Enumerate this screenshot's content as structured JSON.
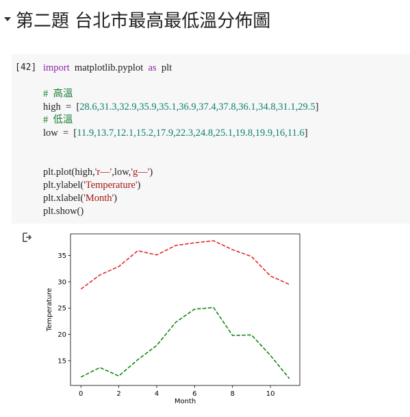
{
  "section": {
    "title": "第二題 台北市最高最低溫分佈圖"
  },
  "cell": {
    "prompt": "[42]",
    "lines": [
      [
        {
          "t": "import",
          "c": "kw"
        },
        {
          "t": "  matplotlib.pyplot  ",
          "c": ""
        },
        {
          "t": "as",
          "c": "kw"
        },
        {
          "t": "  plt",
          "c": ""
        }
      ],
      [],
      [
        {
          "t": "#  高溫",
          "c": "cm"
        }
      ],
      [
        {
          "t": "high  =  [",
          "c": ""
        },
        {
          "t": "28.6,31.3,32.9,35.9,35.1,36.9,37.4,37.8,36.1,34.8,31.1,29.5",
          "c": "num"
        },
        {
          "t": "]",
          "c": ""
        }
      ],
      [
        {
          "t": "#  低溫",
          "c": "cm"
        }
      ],
      [
        {
          "t": "low  =  [",
          "c": ""
        },
        {
          "t": "11.9,13.7,12.1,15.2,17.9,22.3,24.8,25.1,19.8,19.9,16,11.6",
          "c": "num"
        },
        {
          "t": "]",
          "c": ""
        }
      ],
      [],
      [],
      [
        {
          "t": "plt.plot(high,",
          "c": ""
        },
        {
          "t": "'r—'",
          "c": "str"
        },
        {
          "t": ",low,",
          "c": ""
        },
        {
          "t": "'g—'",
          "c": "str"
        },
        {
          "t": ")",
          "c": ""
        }
      ],
      [
        {
          "t": "plt.ylabel(",
          "c": ""
        },
        {
          "t": "'Temperature'",
          "c": "str"
        },
        {
          "t": ")",
          "c": ""
        }
      ],
      [
        {
          "t": "plt.xlabel(",
          "c": ""
        },
        {
          "t": "'Month'",
          "c": "str"
        },
        {
          "t": ")",
          "c": ""
        }
      ],
      [
        {
          "t": "plt.show()",
          "c": ""
        }
      ]
    ]
  },
  "output": {
    "icon": "output-arrow-icon"
  },
  "chart_data": {
    "type": "line",
    "x": [
      0,
      1,
      2,
      3,
      4,
      5,
      6,
      7,
      8,
      9,
      10,
      11
    ],
    "series": [
      {
        "values": [
          28.6,
          31.3,
          32.9,
          35.9,
          35.1,
          36.9,
          37.4,
          37.8,
          36.1,
          34.8,
          31.1,
          29.5
        ],
        "color": "#e41a1c",
        "style": "dashed"
      },
      {
        "values": [
          11.9,
          13.7,
          12.1,
          15.2,
          17.9,
          22.3,
          24.8,
          25.1,
          19.8,
          19.9,
          16,
          11.6
        ],
        "color": "#008000",
        "style": "dashed"
      }
    ],
    "xlabel": "Month",
    "ylabel": "Temperature",
    "xlim": [
      -0.55,
      11.55
    ],
    "ylim": [
      10.3,
      39.1
    ],
    "xticks": [
      0,
      2,
      4,
      6,
      8,
      10
    ],
    "yticks": [
      15,
      20,
      25,
      30,
      35
    ],
    "grid": false
  }
}
